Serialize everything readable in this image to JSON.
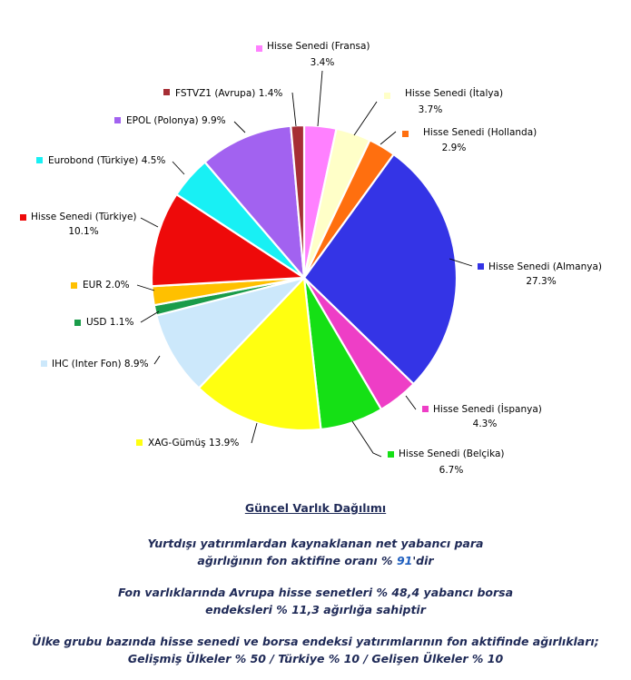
{
  "chart_data": {
    "type": "pie",
    "slices": [
      {
        "label": "Hisse Senedi (Fransa)",
        "value": 3.4,
        "value_text": "3.4%",
        "color": "#ff80ff"
      },
      {
        "label": "Hisse Senedi (İtalya)",
        "value": 3.7,
        "value_text": "3.7%",
        "color": "#ffffc8"
      },
      {
        "label": "Hisse Senedi (Hollanda)",
        "value": 2.9,
        "value_text": "2.9%",
        "color": "#ff6f0f"
      },
      {
        "label": "Hisse Senedi (Almanya)",
        "value": 27.3,
        "value_text": "27.3%",
        "color": "#3434e6"
      },
      {
        "label": "Hisse Senedi (İspanya)",
        "value": 4.3,
        "value_text": "4.3%",
        "color": "#ee3ec6"
      },
      {
        "label": "Hisse Senedi (Belçika)",
        "value": 6.7,
        "value_text": "6.7%",
        "color": "#15e015"
      },
      {
        "label": "XAG-Gümüş",
        "value": 13.9,
        "value_text": "13.9%",
        "color": "#ffff10"
      },
      {
        "label": "IHC (Inter Fon)",
        "value": 8.9,
        "value_text": "8.9%",
        "color": "#cce8fb"
      },
      {
        "label": "USD",
        "value": 1.1,
        "value_text": "1.1%",
        "color": "#1a9c4a"
      },
      {
        "label": "EUR",
        "value": 2.0,
        "value_text": "2.0%",
        "color": "#ffc000"
      },
      {
        "label": "Hisse Senedi (Türkiye)",
        "value": 10.1,
        "value_text": "10.1%",
        "color": "#ee0a0a"
      },
      {
        "label": "Eurobond (Türkiye)",
        "value": 4.5,
        "value_text": "4.5%",
        "color": "#18f0f4"
      },
      {
        "label": "EPOL (Polonya)",
        "value": 9.9,
        "value_text": "9.9%",
        "color": "#a262f0"
      },
      {
        "label": "FSTVZ1 (Avrupa)",
        "value": 1.4,
        "value_text": "1.4%",
        "color": "#a62e35"
      }
    ]
  },
  "caption": {
    "title": "Güncel Varlık Dağılımı",
    "line1": "Yurtdışı yatırımlardan kaynaklanan net yabancı para",
    "line2_pre": "ağırlığının fon aktifine oranı % ",
    "line2_highlight": "91",
    "line2_post": "'dir",
    "line3": "Fon varlıklarında Avrupa hisse senetleri % 48,4 yabancı borsa",
    "line4": "endeksleri % 11,3 ağırlığa sahiptir",
    "line5": "Ülke grubu bazında hisse senedi ve borsa endeksi yatırımlarının fon aktifinde ağırlıkları;",
    "line6": "Gelişmiş Ülkeler  % 50 / Türkiye % 10 / Gelişen Ülkeler % 10"
  }
}
